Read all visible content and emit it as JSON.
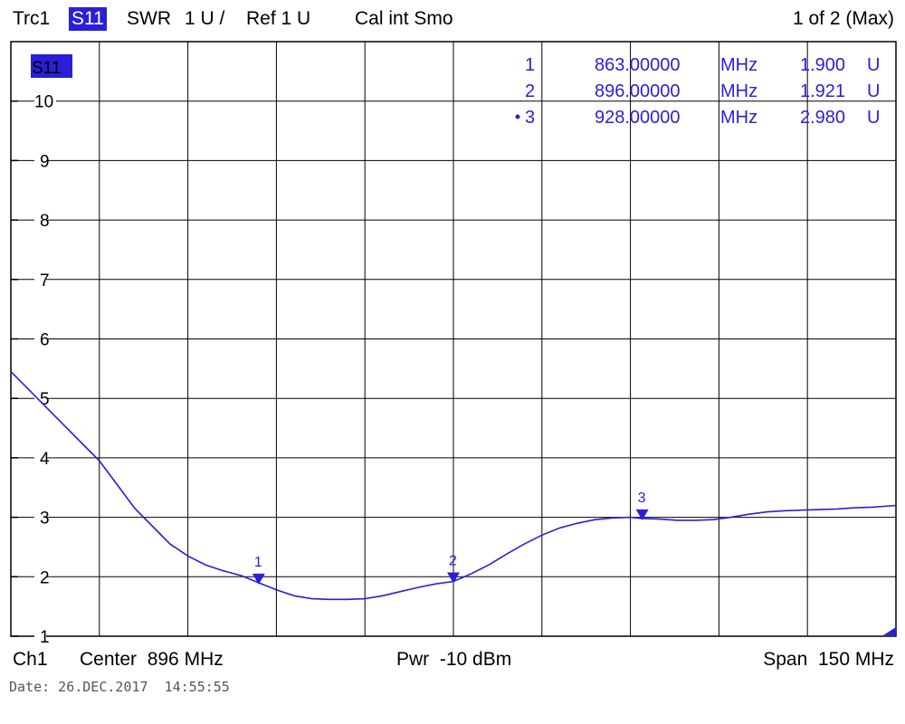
{
  "header": {
    "trace": "Trc1",
    "param": "S11",
    "format": "SWR",
    "scale": "1 U /",
    "ref": "Ref 1 U",
    "cal": "Cal int Smo",
    "page": "1 of 2 (Max)"
  },
  "footer": {
    "channel": "Ch1",
    "center": "Center  896 MHz",
    "power": "Pwr  -10 dBm",
    "span": "Span  150 MHz"
  },
  "date_line": "Date: 26.DEC.2017  14:55:55",
  "colors": {
    "trace": "#2a1fd6",
    "grid": "#000000",
    "background": "#ffffff"
  },
  "chart_data": {
    "type": "line",
    "trace_label": "S11",
    "xlabel": "",
    "ylabel": "",
    "xlim": [
      821,
      971
    ],
    "ylim": [
      1,
      11
    ],
    "yticks": [
      "1",
      "2",
      "3",
      "4",
      "5",
      "6",
      "7",
      "8",
      "9",
      "10"
    ],
    "grid": true,
    "series": [
      {
        "name": "",
        "x": [
          821,
          824,
          827,
          830,
          833,
          836,
          839,
          842,
          845,
          848,
          851,
          854,
          857,
          860,
          863,
          866,
          869,
          872,
          875,
          878,
          881,
          884,
          887,
          890,
          893,
          896,
          899,
          902,
          905,
          908,
          911,
          914,
          917,
          920,
          923,
          926,
          928,
          931,
          934,
          937,
          940,
          943,
          946,
          949,
          952,
          955,
          958,
          961,
          964,
          967,
          971
        ],
        "y": [
          5.45,
          5.15,
          4.85,
          4.55,
          4.25,
          3.95,
          3.55,
          3.15,
          2.85,
          2.55,
          2.35,
          2.2,
          2.1,
          2.02,
          1.9,
          1.78,
          1.68,
          1.63,
          1.62,
          1.62,
          1.63,
          1.68,
          1.75,
          1.82,
          1.88,
          1.921,
          2.05,
          2.2,
          2.38,
          2.55,
          2.7,
          2.82,
          2.9,
          2.96,
          2.99,
          3.0,
          2.98,
          2.97,
          2.95,
          2.95,
          2.96,
          3.0,
          3.05,
          3.09,
          3.11,
          3.12,
          3.13,
          3.14,
          3.16,
          3.17,
          3.2
        ]
      }
    ],
    "markers": [
      {
        "id": "1",
        "freq": "863.00000",
        "unit": "MHz",
        "value": "1.900",
        "vunit": "U",
        "x": 863,
        "y": 1.9,
        "active": false
      },
      {
        "id": "2",
        "freq": "896.00000",
        "unit": "MHz",
        "value": "1.921",
        "vunit": "U",
        "x": 896,
        "y": 1.921,
        "active": false
      },
      {
        "id": "3",
        "freq": "928.00000",
        "unit": "MHz",
        "value": "2.980",
        "vunit": "U",
        "x": 928,
        "y": 2.98,
        "active": true
      }
    ]
  }
}
